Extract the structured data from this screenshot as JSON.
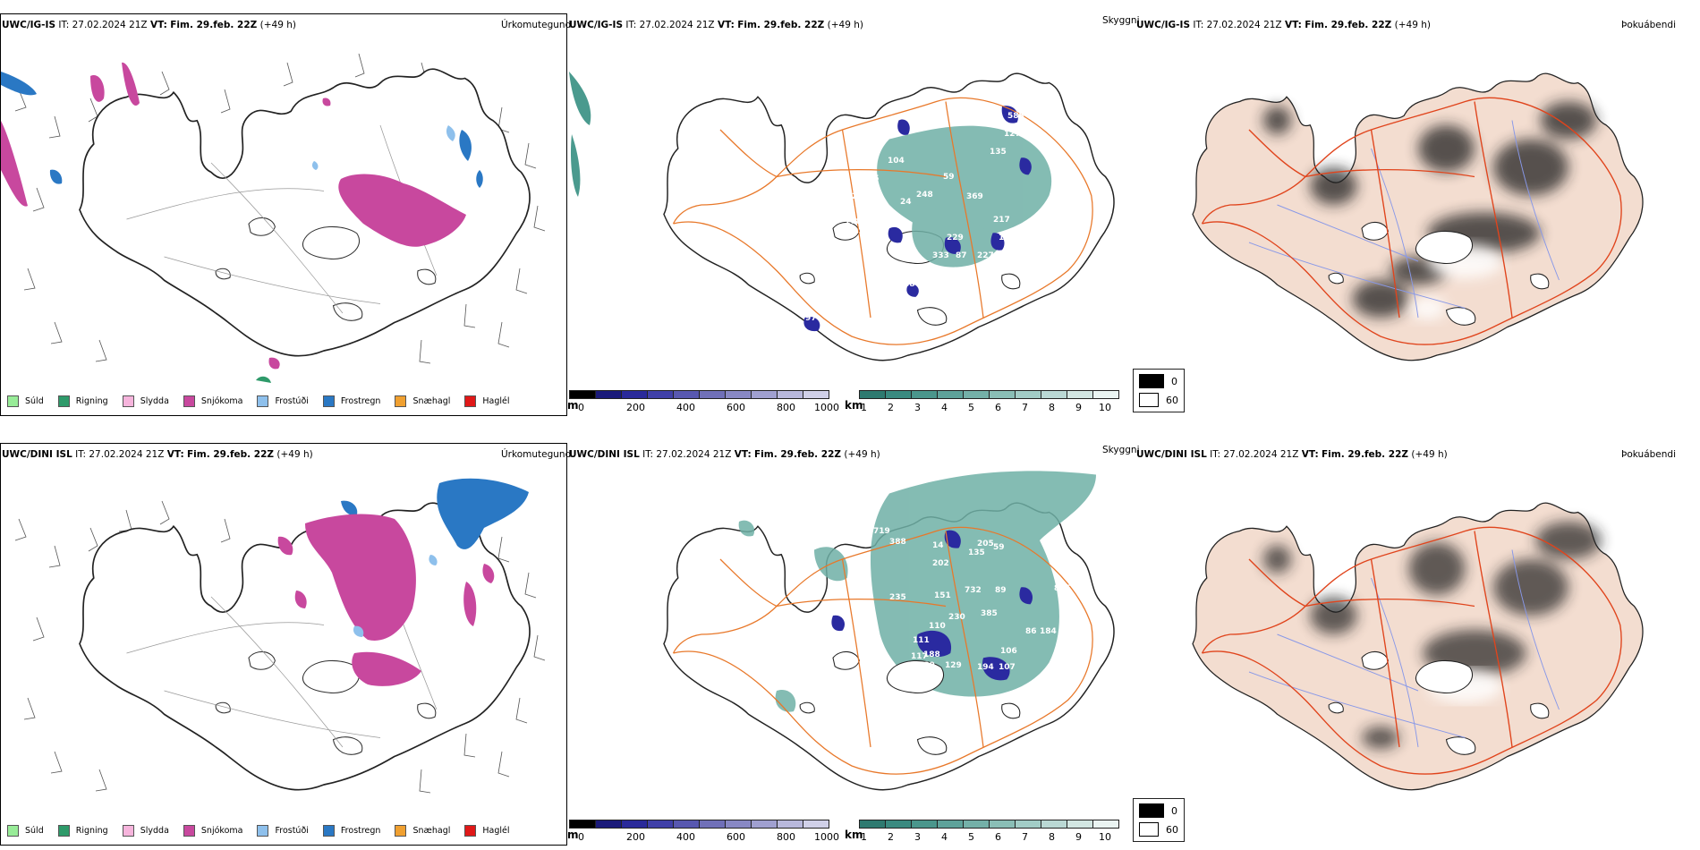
{
  "rows": [
    {
      "model": "UWC/IG-IS",
      "it_label": "IT:",
      "it_value": "27.02.2024 21Z",
      "vt_label": "VT:",
      "vt_value": "Fim. 29.feb. 22Z",
      "lead": "(+49 h)",
      "panel_titles": [
        "Úrkomutegund",
        "Skyggni",
        "Þokuábendi"
      ],
      "visibility_numbers": [
        "46",
        "373",
        "588",
        "127",
        "135",
        "104",
        "70",
        "15",
        "59",
        "248",
        "24",
        "369",
        "217",
        "15",
        "156",
        "229",
        "333",
        "87",
        "227",
        "142",
        "417",
        "88",
        "97",
        "168",
        "22"
      ],
      "precip_blobs": "few"
    },
    {
      "model": "UWC/DINI ISL",
      "it_label": "IT:",
      "it_value": "27.02.2024 21Z",
      "vt_label": "VT:",
      "vt_value": "Fim. 29.feb. 22Z",
      "lead": "(+49 h)",
      "panel_titles": [
        "Úrkomutegund",
        "Skyggni",
        "Þokuábendi"
      ],
      "visibility_numbers": [
        "719",
        "388",
        "14",
        "205",
        "135",
        "59",
        "202",
        "732",
        "89",
        "235",
        "151",
        "385",
        "110",
        "230",
        "86",
        "184",
        "111",
        "117",
        "188",
        "129",
        "194",
        "106",
        "107",
        "180",
        "132",
        "166",
        "865"
      ],
      "precip_blobs": "many"
    }
  ],
  "precip_legend": [
    {
      "label": "Súld",
      "color": "#98ec98"
    },
    {
      "label": "Rigning",
      "color": "#2e9a6a"
    },
    {
      "label": "Slydda",
      "color": "#f6b4dc"
    },
    {
      "label": "Snjókoma",
      "color": "#c8489e"
    },
    {
      "label": "Frostúði",
      "color": "#8ec0ec"
    },
    {
      "label": "Frostregn",
      "color": "#2a78c4"
    },
    {
      "label": "Snæhagl",
      "color": "#f0a030"
    },
    {
      "label": "Haglél",
      "color": "#e01818"
    }
  ],
  "terrain_scale": {
    "unit": "m",
    "ticks": [
      "0",
      "200",
      "400",
      "600",
      "800",
      "1000"
    ],
    "colors": [
      "#000000",
      "#1a1a7a",
      "#2a2a9a",
      "#4040a8",
      "#5858b0",
      "#7070b8",
      "#8888c4",
      "#a0a0d0",
      "#b8b8dc",
      "#d0d0e8"
    ]
  },
  "vis_scale": {
    "unit": "km",
    "ticks": [
      "1",
      "2",
      "3",
      "4",
      "5",
      "6",
      "7",
      "8",
      "9",
      "10"
    ],
    "colors": [
      "#2e7a70",
      "#3a8a80",
      "#4a968c",
      "#5ea29a",
      "#74b0a8",
      "#8abeb6",
      "#a2ccc6",
      "#bad8d4",
      "#d2e6e2",
      "#eaf4f2"
    ]
  },
  "fog_legend": [
    {
      "label": "0",
      "color": "#000000"
    },
    {
      "label": "60",
      "color": "#ffffff"
    }
  ],
  "colors": {
    "snow": "#c8489e",
    "frzrain": "#2a78c4",
    "frzdriz": "#8ec0ec",
    "rain": "#2e9a6a",
    "vis_teal": "#4a9a8e",
    "terrain_blue": "#2a2aa0",
    "roads": "#e8782a",
    "fog_land": "#f3ddd0",
    "fog_roads": "#e0441c",
    "rivers": "#8898e8"
  }
}
